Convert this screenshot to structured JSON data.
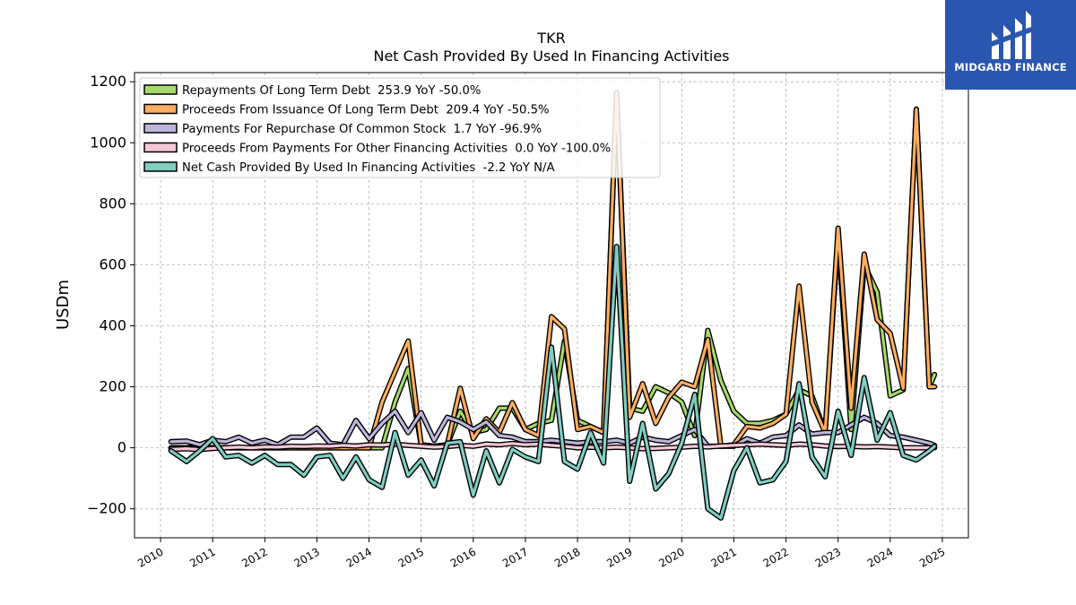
{
  "header": {
    "ticker": "TKR",
    "subtitle": "Net Cash Provided By Used In Financing Activities"
  },
  "logo": {
    "text": "MIDGARD FINANCE",
    "color": "#2a56b0"
  },
  "chart_data": {
    "type": "line",
    "title": "TKR",
    "subtitle": "Net Cash Provided By Used In Financing Activities",
    "ylabel": "USDm",
    "xlabel": "",
    "xlim": [
      2009.5,
      2025.5
    ],
    "ylim": [
      -295,
      1230
    ],
    "xticks": [
      "2010",
      "2011",
      "2012",
      "2013",
      "2014",
      "2015",
      "2016",
      "2017",
      "2018",
      "2019",
      "2020",
      "2021",
      "2022",
      "2023",
      "2024",
      "2025"
    ],
    "yticks": [
      -200,
      0,
      200,
      400,
      600,
      800,
      1000,
      1200
    ],
    "yticklabels": [
      "−200",
      "0",
      "200",
      "400",
      "600",
      "800",
      "1000",
      "1200"
    ],
    "grid": true,
    "legend_position": "top-left",
    "series": [
      {
        "name": "Repayments Of Long Term Debt  253.9 YoY -50.0%",
        "color": "#a6d96a",
        "points": [
          [
            2010.2,
            0
          ],
          [
            2010.5,
            0
          ],
          [
            2010.75,
            5
          ],
          [
            2011.0,
            0
          ],
          [
            2011.25,
            0
          ],
          [
            2011.5,
            0
          ],
          [
            2011.75,
            0
          ],
          [
            2012.0,
            0
          ],
          [
            2012.25,
            0
          ],
          [
            2012.5,
            0
          ],
          [
            2012.75,
            0
          ],
          [
            2013.0,
            0
          ],
          [
            2013.25,
            0
          ],
          [
            2013.5,
            0
          ],
          [
            2013.75,
            0
          ],
          [
            2014.0,
            0
          ],
          [
            2014.25,
            0
          ],
          [
            2014.5,
            150
          ],
          [
            2014.75,
            260
          ],
          [
            2015.0,
            10
          ],
          [
            2015.25,
            5
          ],
          [
            2015.5,
            10
          ],
          [
            2015.75,
            120
          ],
          [
            2016.0,
            50
          ],
          [
            2016.25,
            60
          ],
          [
            2016.5,
            130
          ],
          [
            2016.75,
            130
          ],
          [
            2017.0,
            60
          ],
          [
            2017.25,
            80
          ],
          [
            2017.5,
            90
          ],
          [
            2017.75,
            350
          ],
          [
            2018.0,
            90
          ],
          [
            2018.25,
            70
          ],
          [
            2018.5,
            50
          ],
          [
            2018.75,
            1160
          ],
          [
            2019.0,
            130
          ],
          [
            2019.25,
            120
          ],
          [
            2019.5,
            200
          ],
          [
            2019.75,
            180
          ],
          [
            2020.0,
            150
          ],
          [
            2020.25,
            40
          ],
          [
            2020.5,
            385
          ],
          [
            2020.75,
            220
          ],
          [
            2021.0,
            120
          ],
          [
            2021.25,
            80
          ],
          [
            2021.5,
            80
          ],
          [
            2021.75,
            90
          ],
          [
            2022.0,
            110
          ],
          [
            2022.25,
            190
          ],
          [
            2022.5,
            170
          ],
          [
            2022.75,
            50
          ],
          [
            2023.0,
            700
          ],
          [
            2023.25,
            60
          ],
          [
            2023.5,
            600
          ],
          [
            2023.75,
            510
          ],
          [
            2024.0,
            170
          ],
          [
            2024.25,
            190
          ],
          [
            2024.5,
            1110
          ],
          [
            2024.75,
            200
          ],
          [
            2024.85,
            240
          ]
        ]
      },
      {
        "name": "Proceeds From Issuance Of Long Term Debt  209.4 YoY -50.5%",
        "color": "#fdae61",
        "points": [
          [
            2010.2,
            0
          ],
          [
            2010.5,
            0
          ],
          [
            2010.75,
            0
          ],
          [
            2011.0,
            0
          ],
          [
            2011.25,
            0
          ],
          [
            2011.5,
            0
          ],
          [
            2011.75,
            0
          ],
          [
            2012.0,
            0
          ],
          [
            2012.25,
            0
          ],
          [
            2012.5,
            0
          ],
          [
            2012.75,
            0
          ],
          [
            2013.0,
            0
          ],
          [
            2013.25,
            0
          ],
          [
            2013.5,
            0
          ],
          [
            2013.75,
            0
          ],
          [
            2014.0,
            0
          ],
          [
            2014.25,
            150
          ],
          [
            2014.5,
            250
          ],
          [
            2014.75,
            350
          ],
          [
            2015.0,
            10
          ],
          [
            2015.25,
            5
          ],
          [
            2015.5,
            10
          ],
          [
            2015.75,
            195
          ],
          [
            2016.0,
            30
          ],
          [
            2016.25,
            95
          ],
          [
            2016.5,
            50
          ],
          [
            2016.75,
            148
          ],
          [
            2017.0,
            60
          ],
          [
            2017.25,
            40
          ],
          [
            2017.5,
            430
          ],
          [
            2017.75,
            390
          ],
          [
            2018.0,
            60
          ],
          [
            2018.25,
            70
          ],
          [
            2018.5,
            50
          ],
          [
            2018.75,
            1165
          ],
          [
            2019.0,
            100
          ],
          [
            2019.25,
            210
          ],
          [
            2019.5,
            80
          ],
          [
            2019.75,
            165
          ],
          [
            2020.0,
            215
          ],
          [
            2020.25,
            200
          ],
          [
            2020.5,
            355
          ],
          [
            2020.75,
            5
          ],
          [
            2021.0,
            10
          ],
          [
            2021.25,
            70
          ],
          [
            2021.5,
            65
          ],
          [
            2021.75,
            80
          ],
          [
            2022.0,
            110
          ],
          [
            2022.25,
            530
          ],
          [
            2022.5,
            150
          ],
          [
            2022.75,
            50
          ],
          [
            2023.0,
            720
          ],
          [
            2023.25,
            130
          ],
          [
            2023.5,
            635
          ],
          [
            2023.75,
            420
          ],
          [
            2024.0,
            375
          ],
          [
            2024.25,
            195
          ],
          [
            2024.5,
            1110
          ],
          [
            2024.75,
            200
          ],
          [
            2024.85,
            200
          ]
        ]
      },
      {
        "name": "Payments For Repurchase Of Common Stock  1.7 YoY -96.9%",
        "color": "#bcb6dd",
        "points": [
          [
            2010.2,
            20
          ],
          [
            2010.5,
            22
          ],
          [
            2010.75,
            10
          ],
          [
            2011.0,
            25
          ],
          [
            2011.25,
            20
          ],
          [
            2011.5,
            35
          ],
          [
            2011.75,
            15
          ],
          [
            2012.0,
            25
          ],
          [
            2012.25,
            10
          ],
          [
            2012.5,
            35
          ],
          [
            2012.75,
            35
          ],
          [
            2013.0,
            65
          ],
          [
            2013.25,
            15
          ],
          [
            2013.5,
            10
          ],
          [
            2013.75,
            90
          ],
          [
            2014.0,
            30
          ],
          [
            2014.25,
            80
          ],
          [
            2014.5,
            120
          ],
          [
            2014.75,
            50
          ],
          [
            2015.0,
            115
          ],
          [
            2015.25,
            25
          ],
          [
            2015.5,
            100
          ],
          [
            2015.75,
            85
          ],
          [
            2016.0,
            60
          ],
          [
            2016.25,
            85
          ],
          [
            2016.5,
            40
          ],
          [
            2016.75,
            35
          ],
          [
            2017.0,
            20
          ],
          [
            2017.25,
            20
          ],
          [
            2017.5,
            25
          ],
          [
            2017.75,
            20
          ],
          [
            2018.0,
            15
          ],
          [
            2018.25,
            20
          ],
          [
            2018.5,
            20
          ],
          [
            2018.75,
            25
          ],
          [
            2019.0,
            15
          ],
          [
            2019.25,
            35
          ],
          [
            2019.5,
            25
          ],
          [
            2019.75,
            20
          ],
          [
            2020.0,
            40
          ],
          [
            2020.25,
            60
          ],
          [
            2020.5,
            5
          ],
          [
            2020.75,
            5
          ],
          [
            2021.0,
            5
          ],
          [
            2021.25,
            30
          ],
          [
            2021.5,
            15
          ],
          [
            2021.75,
            35
          ],
          [
            2022.0,
            40
          ],
          [
            2022.25,
            75
          ],
          [
            2022.5,
            45
          ],
          [
            2022.75,
            50
          ],
          [
            2023.0,
            50
          ],
          [
            2023.25,
            75
          ],
          [
            2023.5,
            100
          ],
          [
            2023.75,
            80
          ],
          [
            2024.0,
            40
          ],
          [
            2024.25,
            35
          ],
          [
            2024.5,
            25
          ],
          [
            2024.75,
            15
          ],
          [
            2024.85,
            8
          ]
        ]
      },
      {
        "name": "Proceeds From Payments For Other Financing Activities  0.0 YoY -100.0%",
        "color": "#f7c6d9",
        "points": [
          [
            2010.2,
            -5
          ],
          [
            2010.5,
            -3
          ],
          [
            2010.75,
            -6
          ],
          [
            2011.0,
            -2
          ],
          [
            2011.25,
            0
          ],
          [
            2011.5,
            2
          ],
          [
            2011.75,
            0
          ],
          [
            2012.0,
            3
          ],
          [
            2012.25,
            2
          ],
          [
            2012.5,
            5
          ],
          [
            2012.75,
            4
          ],
          [
            2013.0,
            6
          ],
          [
            2013.25,
            5
          ],
          [
            2013.5,
            8
          ],
          [
            2013.75,
            6
          ],
          [
            2014.0,
            10
          ],
          [
            2014.25,
            9
          ],
          [
            2014.5,
            12
          ],
          [
            2014.75,
            8
          ],
          [
            2015.0,
            5
          ],
          [
            2015.25,
            2
          ],
          [
            2015.5,
            4
          ],
          [
            2015.75,
            8
          ],
          [
            2016.0,
            5
          ],
          [
            2016.25,
            12
          ],
          [
            2016.5,
            10
          ],
          [
            2016.75,
            14
          ],
          [
            2017.0,
            10
          ],
          [
            2017.25,
            12
          ],
          [
            2017.5,
            8
          ],
          [
            2017.75,
            5
          ],
          [
            2018.0,
            0
          ],
          [
            2018.25,
            2
          ],
          [
            2018.5,
            0
          ],
          [
            2018.75,
            2
          ],
          [
            2019.0,
            0
          ],
          [
            2019.25,
            -3
          ],
          [
            2019.5,
            -2
          ],
          [
            2019.75,
            0
          ],
          [
            2020.0,
            2
          ],
          [
            2020.25,
            5
          ],
          [
            2020.5,
            3
          ],
          [
            2020.75,
            6
          ],
          [
            2021.0,
            8
          ],
          [
            2021.25,
            10
          ],
          [
            2021.5,
            12
          ],
          [
            2021.75,
            10
          ],
          [
            2022.0,
            8
          ],
          [
            2022.25,
            12
          ],
          [
            2022.5,
            10
          ],
          [
            2022.75,
            6
          ],
          [
            2023.0,
            4
          ],
          [
            2023.25,
            5
          ],
          [
            2023.5,
            3
          ],
          [
            2023.75,
            4
          ],
          [
            2024.0,
            2
          ],
          [
            2024.25,
            0
          ],
          [
            2024.5,
            0
          ],
          [
            2024.75,
            0
          ],
          [
            2024.85,
            0
          ]
        ]
      },
      {
        "name": "Net Cash Provided By Used In Financing Activities  -2.2 YoY N/A",
        "color": "#80cdc1",
        "points": [
          [
            2010.2,
            -10
          ],
          [
            2010.5,
            -45
          ],
          [
            2010.75,
            -10
          ],
          [
            2011.0,
            30
          ],
          [
            2011.25,
            -30
          ],
          [
            2011.5,
            -25
          ],
          [
            2011.75,
            -50
          ],
          [
            2012.0,
            -25
          ],
          [
            2012.25,
            -55
          ],
          [
            2012.5,
            -55
          ],
          [
            2012.75,
            -90
          ],
          [
            2013.0,
            -30
          ],
          [
            2013.25,
            -25
          ],
          [
            2013.5,
            -100
          ],
          [
            2013.75,
            -30
          ],
          [
            2014.0,
            -105
          ],
          [
            2014.25,
            -130
          ],
          [
            2014.5,
            50
          ],
          [
            2014.75,
            -90
          ],
          [
            2015.0,
            -40
          ],
          [
            2015.25,
            -125
          ],
          [
            2015.5,
            15
          ],
          [
            2015.75,
            20
          ],
          [
            2016.0,
            -155
          ],
          [
            2016.25,
            -10
          ],
          [
            2016.5,
            -115
          ],
          [
            2016.75,
            -5
          ],
          [
            2017.0,
            -30
          ],
          [
            2017.25,
            -45
          ],
          [
            2017.5,
            330
          ],
          [
            2017.75,
            -45
          ],
          [
            2018.0,
            -70
          ],
          [
            2018.25,
            50
          ],
          [
            2018.5,
            -50
          ],
          [
            2018.75,
            660
          ],
          [
            2019.0,
            -110
          ],
          [
            2019.25,
            80
          ],
          [
            2019.5,
            -135
          ],
          [
            2019.75,
            -85
          ],
          [
            2020.0,
            15
          ],
          [
            2020.25,
            175
          ],
          [
            2020.5,
            -200
          ],
          [
            2020.75,
            -230
          ],
          [
            2021.0,
            -75
          ],
          [
            2021.25,
            0
          ],
          [
            2021.5,
            -115
          ],
          [
            2021.75,
            -105
          ],
          [
            2022.0,
            -45
          ],
          [
            2022.25,
            210
          ],
          [
            2022.5,
            -30
          ],
          [
            2022.75,
            -95
          ],
          [
            2023.0,
            120
          ],
          [
            2023.25,
            -25
          ],
          [
            2023.5,
            230
          ],
          [
            2023.75,
            25
          ],
          [
            2024.0,
            115
          ],
          [
            2024.25,
            -25
          ],
          [
            2024.5,
            -40
          ],
          [
            2024.75,
            -10
          ],
          [
            2024.85,
            5
          ]
        ]
      }
    ]
  }
}
